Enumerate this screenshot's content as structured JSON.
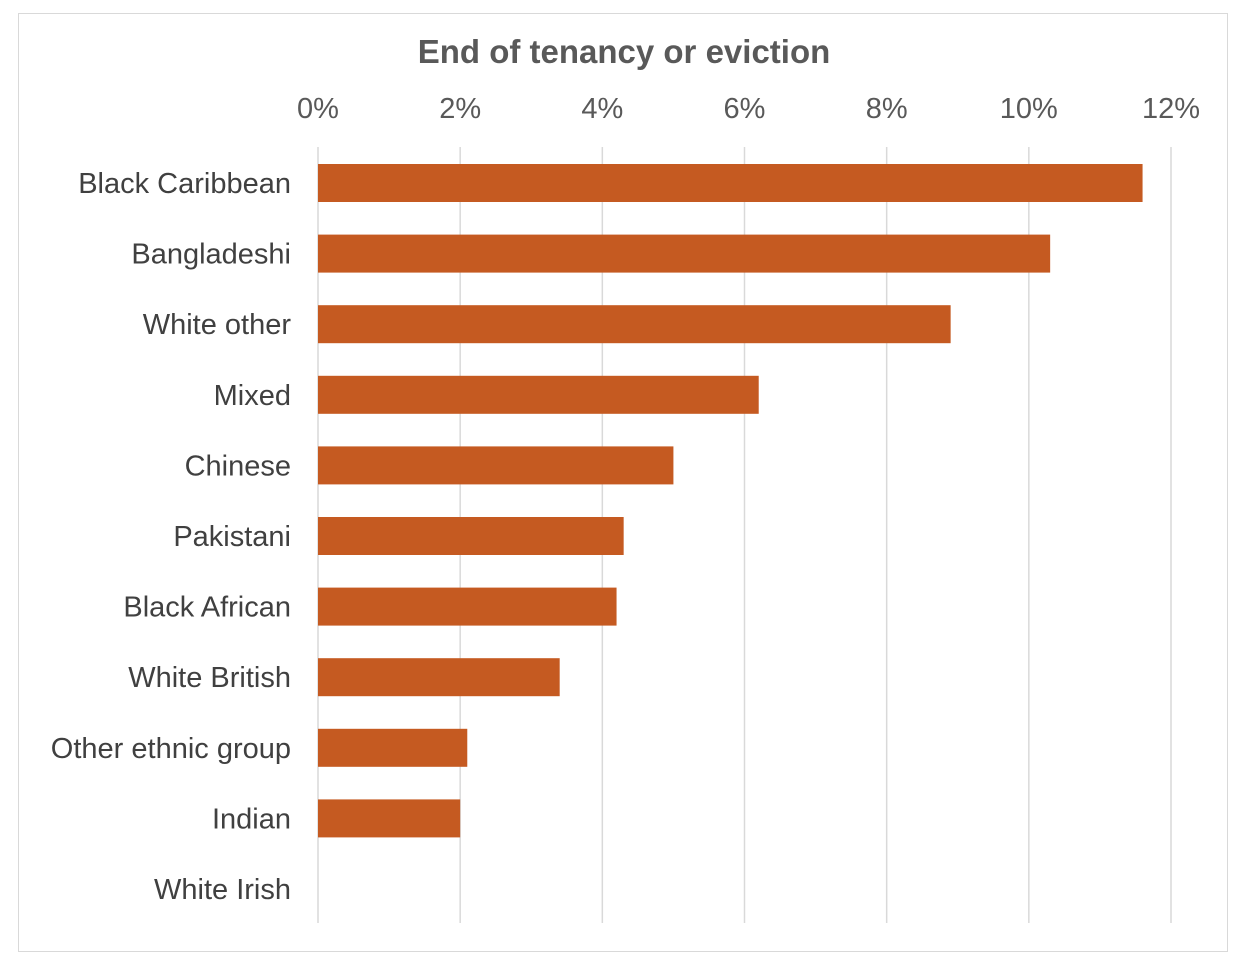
{
  "chart_data": {
    "type": "bar",
    "orientation": "horizontal",
    "title": "End of tenancy or eviction",
    "xlabel": "",
    "ylabel": "",
    "x_axis_position": "top",
    "xlim": [
      0,
      12
    ],
    "x_ticks": [
      0,
      2,
      4,
      6,
      8,
      10,
      12
    ],
    "x_tick_labels": [
      "0%",
      "2%",
      "4%",
      "6%",
      "8%",
      "10%",
      "12%"
    ],
    "grid": true,
    "bar_color": "#c55a21",
    "categories": [
      "Black Caribbean",
      "Bangladeshi",
      "White other",
      "Mixed",
      "Chinese",
      "Pakistani",
      "Black African",
      "White British",
      "Other ethnic group",
      "Indian",
      "White Irish"
    ],
    "values": [
      11.6,
      10.3,
      8.9,
      6.2,
      5.0,
      4.3,
      4.2,
      3.4,
      2.1,
      2.0,
      0
    ]
  }
}
